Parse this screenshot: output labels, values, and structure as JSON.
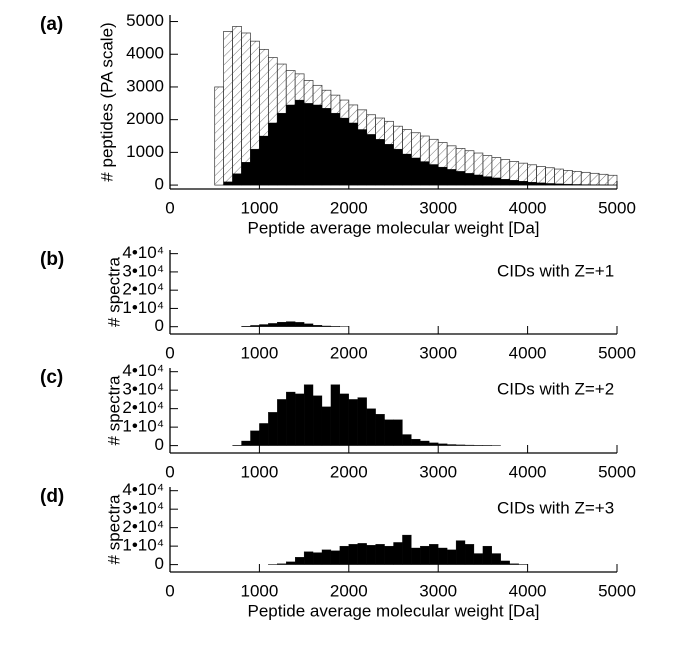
{
  "chart_data": [
    {
      "type": "histogram",
      "panel_label": "(a)",
      "y_label": "# peptides (PA scale)",
      "x_label": "Peptide average molecular weight [Da]",
      "bins": [
        0,
        100,
        200,
        300,
        400,
        500,
        600,
        700,
        800,
        900,
        1000,
        1100,
        1200,
        1300,
        1400,
        1500,
        1600,
        1700,
        1800,
        1900,
        2000,
        2100,
        2200,
        2300,
        2400,
        2500,
        2600,
        2700,
        2800,
        2900,
        3000,
        3100,
        3200,
        3300,
        3400,
        3500,
        3600,
        3700,
        3800,
        3900,
        4000,
        4100,
        4200,
        4300,
        4400,
        4500,
        4600,
        4700,
        4800,
        4900,
        5000
      ],
      "series": [
        {
          "color": "#000000",
          "hatch": true,
          "values": [
            0,
            0,
            0,
            0,
            0,
            3000,
            4700,
            4850,
            4650,
            4400,
            4150,
            3900,
            3700,
            3500,
            3400,
            3200,
            3050,
            2900,
            2750,
            2600,
            2450,
            2300,
            2150,
            2050,
            1950,
            1800,
            1700,
            1600,
            1500,
            1400,
            1300,
            1200,
            1120,
            1050,
            980,
            900,
            840,
            780,
            720,
            670,
            620,
            570,
            530,
            490,
            450,
            420,
            390,
            360,
            330,
            300
          ]
        },
        {
          "color": "#000000",
          "hatch": false,
          "values": [
            0,
            0,
            0,
            0,
            0,
            0,
            100,
            350,
            700,
            1100,
            1500,
            1900,
            2200,
            2450,
            2600,
            2500,
            2450,
            2350,
            2200,
            2050,
            1900,
            1700,
            1550,
            1400,
            1250,
            1100,
            950,
            830,
            720,
            630,
            550,
            480,
            420,
            360,
            310,
            260,
            220,
            180,
            150,
            120,
            90,
            70,
            50,
            40,
            30,
            20,
            15,
            10,
            8,
            5
          ]
        }
      ],
      "xlim": [
        0,
        5000
      ],
      "xticks": [
        0,
        1000,
        2000,
        3000,
        4000,
        5000
      ],
      "ylim": [
        -120,
        5200
      ],
      "yticks": [
        0,
        1000,
        2000,
        3000,
        4000,
        5000
      ]
    },
    {
      "type": "histogram",
      "panel_label": "(b)",
      "y_label": "# spectra",
      "annotation": "CIDs with Z=+1",
      "bins": [
        0,
        100,
        200,
        300,
        400,
        500,
        600,
        700,
        800,
        900,
        1000,
        1100,
        1200,
        1300,
        1400,
        1500,
        1600,
        1700,
        1800,
        1900,
        2000,
        2100,
        2200,
        2300,
        2400,
        2500,
        2600,
        2700,
        2800,
        2900,
        3000,
        3100,
        3200,
        3300,
        3400,
        3500,
        3600,
        3700,
        3800,
        3900,
        4000,
        4100,
        4200,
        4300,
        4400,
        4500,
        4600,
        4700,
        4800,
        4900,
        5000
      ],
      "series": [
        {
          "color": "#000000",
          "hatch": false,
          "values": [
            0,
            0,
            0,
            0,
            0,
            0,
            0,
            0,
            300,
            700,
            1200,
            1800,
            2500,
            2800,
            2400,
            1600,
            800,
            400,
            200,
            100,
            0,
            0,
            0,
            0,
            0,
            0,
            0,
            0,
            0,
            0,
            0,
            0,
            0,
            0,
            0,
            0,
            0,
            0,
            0,
            0,
            0,
            0,
            0,
            0,
            0,
            0,
            0,
            0,
            0,
            0
          ]
        }
      ],
      "xlim": [
        0,
        5000
      ],
      "xticks": [
        0,
        1000,
        2000,
        3000,
        4000,
        5000
      ],
      "ylim": [
        -4000,
        42000
      ],
      "yticks": [
        0,
        {
          "value": 10000,
          "label": "1•10⁴"
        },
        {
          "value": 20000,
          "label": "2•10⁴"
        },
        {
          "value": 30000,
          "label": "3•10⁴"
        },
        {
          "value": 40000,
          "label": "4•10⁴"
        }
      ]
    },
    {
      "type": "histogram",
      "panel_label": "(c)",
      "y_label": "# spectra",
      "annotation": "CIDs with Z=+2",
      "bins": [
        0,
        100,
        200,
        300,
        400,
        500,
        600,
        700,
        800,
        900,
        1000,
        1100,
        1200,
        1300,
        1400,
        1500,
        1600,
        1700,
        1800,
        1900,
        2000,
        2100,
        2200,
        2300,
        2400,
        2500,
        2600,
        2700,
        2800,
        2900,
        3000,
        3100,
        3200,
        3300,
        3400,
        3500,
        3600,
        3700,
        3800,
        3900,
        4000,
        4100,
        4200,
        4300,
        4400,
        4500,
        4600,
        4700,
        4800,
        4900,
        5000
      ],
      "series": [
        {
          "color": "#000000",
          "hatch": false,
          "values": [
            0,
            0,
            0,
            0,
            0,
            0,
            0,
            200,
            2500,
            8000,
            12000,
            18000,
            25000,
            29000,
            28000,
            33000,
            27000,
            21000,
            33000,
            28000,
            25000,
            26000,
            20000,
            17000,
            14000,
            14000,
            6000,
            3500,
            2500,
            1500,
            1000,
            600,
            400,
            300,
            200,
            150,
            100,
            0,
            0,
            0,
            0,
            0,
            0,
            0,
            0,
            0,
            0,
            0,
            0,
            0
          ]
        }
      ],
      "xlim": [
        0,
        5000
      ],
      "xticks": [
        0,
        1000,
        2000,
        3000,
        4000,
        5000
      ],
      "ylim": [
        -4000,
        42000
      ],
      "yticks": [
        0,
        {
          "value": 10000,
          "label": "1•10⁴"
        },
        {
          "value": 20000,
          "label": "2•10⁴"
        },
        {
          "value": 30000,
          "label": "3•10⁴"
        },
        {
          "value": 40000,
          "label": "4•10⁴"
        }
      ]
    },
    {
      "type": "histogram",
      "panel_label": "(d)",
      "y_label": "# spectra",
      "annotation": "CIDs with Z=+3",
      "x_label": "Peptide average molecular weight [Da]",
      "bins": [
        0,
        100,
        200,
        300,
        400,
        500,
        600,
        700,
        800,
        900,
        1000,
        1100,
        1200,
        1300,
        1400,
        1500,
        1600,
        1700,
        1800,
        1900,
        2000,
        2100,
        2200,
        2300,
        2400,
        2500,
        2600,
        2700,
        2800,
        2900,
        3000,
        3100,
        3200,
        3300,
        3400,
        3500,
        3600,
        3700,
        3800,
        3900,
        4000,
        4100,
        4200,
        4300,
        4400,
        4500,
        4600,
        4700,
        4800,
        4900,
        5000
      ],
      "series": [
        {
          "color": "#000000",
          "hatch": false,
          "values": [
            0,
            0,
            0,
            0,
            0,
            0,
            0,
            0,
            0,
            0,
            0,
            100,
            500,
            1500,
            4000,
            7000,
            6500,
            8000,
            7500,
            10000,
            11000,
            11500,
            10500,
            11000,
            10000,
            12000,
            16000,
            9000,
            10000,
            11000,
            9000,
            8000,
            13000,
            11000,
            6000,
            10000,
            6000,
            2000,
            500,
            100,
            0,
            0,
            0,
            0,
            0,
            0,
            0,
            0,
            0,
            0
          ]
        }
      ],
      "xlim": [
        0,
        5000
      ],
      "xticks": [
        0,
        1000,
        2000,
        3000,
        4000,
        5000
      ],
      "ylim": [
        -4000,
        42000
      ],
      "yticks": [
        0,
        {
          "value": 10000,
          "label": "1•10⁴"
        },
        {
          "value": 20000,
          "label": "2•10⁴"
        },
        {
          "value": 30000,
          "label": "3•10⁴"
        },
        {
          "value": 40000,
          "label": "4•10⁴"
        }
      ]
    }
  ]
}
